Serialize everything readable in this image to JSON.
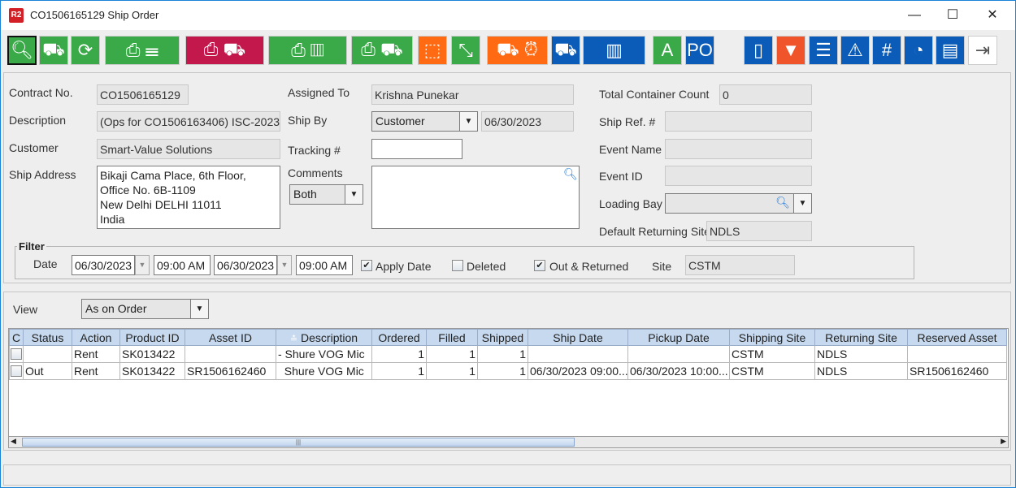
{
  "window": {
    "logo": "R2",
    "title": "CO1506165129 Ship Order",
    "minimize": "—",
    "maximize": "☐",
    "close": "✕"
  },
  "toolbar": [
    {
      "name": "search",
      "glyphs": "🔍︎",
      "color": "#3aaa48"
    },
    {
      "name": "hand-truck",
      "glyphs": "⛟",
      "color": "#3aaa48"
    },
    {
      "name": "refresh",
      "glyphs": "⟳",
      "color": "#3aaa48"
    },
    {
      "name": "print-list",
      "glyphs": "⎙ ☰",
      "color": "#3aaa48"
    },
    {
      "name": "print-truck-check",
      "glyphs": "⎙ ⛟",
      "color": "#c2184b"
    },
    {
      "name": "print-container",
      "glyphs": "⎙ ▥",
      "color": "#3aaa48"
    },
    {
      "name": "print-truck-clock",
      "glyphs": "⎙ ⛟",
      "color": "#3aaa48"
    },
    {
      "name": "open-box",
      "glyphs": "⬚",
      "color": "#ff6a13"
    },
    {
      "name": "collapse",
      "glyphs": "⤡",
      "color": "#3aaa48"
    },
    {
      "name": "truck-alarm",
      "glyphs": "⛟ ⏰︎",
      "color": "#ff6a13"
    },
    {
      "name": "st-truck",
      "glyphs": "⛟",
      "color": "#0a5cb8"
    },
    {
      "name": "container",
      "glyphs": "▥",
      "color": "#0a5cb8"
    },
    {
      "name": "expand-a",
      "glyphs": "A",
      "color": "#3aaa48"
    },
    {
      "name": "po-view",
      "glyphs": "PO",
      "color": "#0a5cb8"
    },
    {
      "name": "book",
      "glyphs": "▯",
      "color": "#0a5cb8"
    },
    {
      "name": "filter",
      "glyphs": "▼",
      "color": "#f0542a"
    },
    {
      "name": "list",
      "glyphs": "☰",
      "color": "#0a5cb8"
    },
    {
      "name": "warning-eye",
      "glyphs": "⚠︎",
      "color": "#0a5cb8"
    },
    {
      "name": "hash",
      "glyphs": "#",
      "color": "#0a5cb8"
    },
    {
      "name": "gauge",
      "glyphs": "◔",
      "color": "#0a5cb8"
    },
    {
      "name": "comment",
      "glyphs": "▤",
      "color": "#0a5cb8"
    },
    {
      "name": "exit",
      "glyphs": "⇥",
      "color": "#ffffff"
    }
  ],
  "form": {
    "contract_label": "Contract No.",
    "contract": "CO1506165129",
    "description_label": "Description",
    "description": "(Ops for CO1506163406) ISC-2023",
    "customer_label": "Customer",
    "customer": "Smart-Value Solutions",
    "ship_address_label": "Ship Address",
    "ship_address": "Bikaji Cama Place, 6th Floor, Office No. 6B-1109\nNew Delhi DELHI 11011\nIndia",
    "assigned_label": "Assigned To",
    "assigned": "Krishna Punekar",
    "ship_by_label": "Ship By",
    "ship_by": "Customer",
    "ship_date": "06/30/2023",
    "tracking_label": "Tracking #",
    "tracking": "",
    "comments_label": "Comments",
    "comments_filter": "Both",
    "comments": "",
    "total_container_label": "Total Container Count",
    "total_container": "0",
    "ship_ref_label": "Ship Ref. #",
    "ship_ref": "",
    "event_name_label": "Event Name",
    "event_name": "",
    "event_id_label": "Event ID",
    "event_id": "",
    "loading_bay_label": "Loading Bay",
    "loading_bay": "",
    "default_returning_label": "Default Returning Site",
    "default_returning": "NDLS"
  },
  "filter": {
    "title": "Filter",
    "date_label": "Date",
    "from_date": "06/30/2023",
    "from_time": "09:00 AM",
    "to_date": "06/30/2023",
    "to_time": "09:00 AM",
    "apply_date_label": "Apply Date",
    "apply_date": true,
    "deleted_label": "Deleted",
    "deleted": false,
    "out_returned_label": "Out & Returned",
    "out_returned": true,
    "site_label": "Site",
    "site": "CSTM"
  },
  "view": {
    "label": "View",
    "value": "As on Order"
  },
  "table": {
    "columns": [
      "C",
      "Status",
      "Action",
      "Product ID",
      "Asset ID",
      "Description",
      "Ordered",
      "Filled",
      "Shipped",
      "Ship Date",
      "Pickup Date",
      "Shipping Site",
      "Returning Site",
      "Reserved Asset"
    ],
    "sort_indicator": "≛",
    "rows": [
      [
        "",
        "",
        "Rent",
        "SK013422",
        "",
        "- Shure VOG Mic",
        "1",
        "1",
        "1",
        "",
        "",
        "CSTM",
        "NDLS",
        ""
      ],
      [
        "",
        "Out",
        "Rent",
        "SK013422",
        "SR1506162460",
        "  Shure VOG Mic",
        "1",
        "1",
        "1",
        "06/30/2023 09:00...",
        "06/30/2023 10:00...",
        "CSTM",
        "NDLS",
        "SR1506162460"
      ]
    ]
  },
  "scrollbar": {
    "left": "◀",
    "right": "▶",
    "grip": "|||"
  }
}
